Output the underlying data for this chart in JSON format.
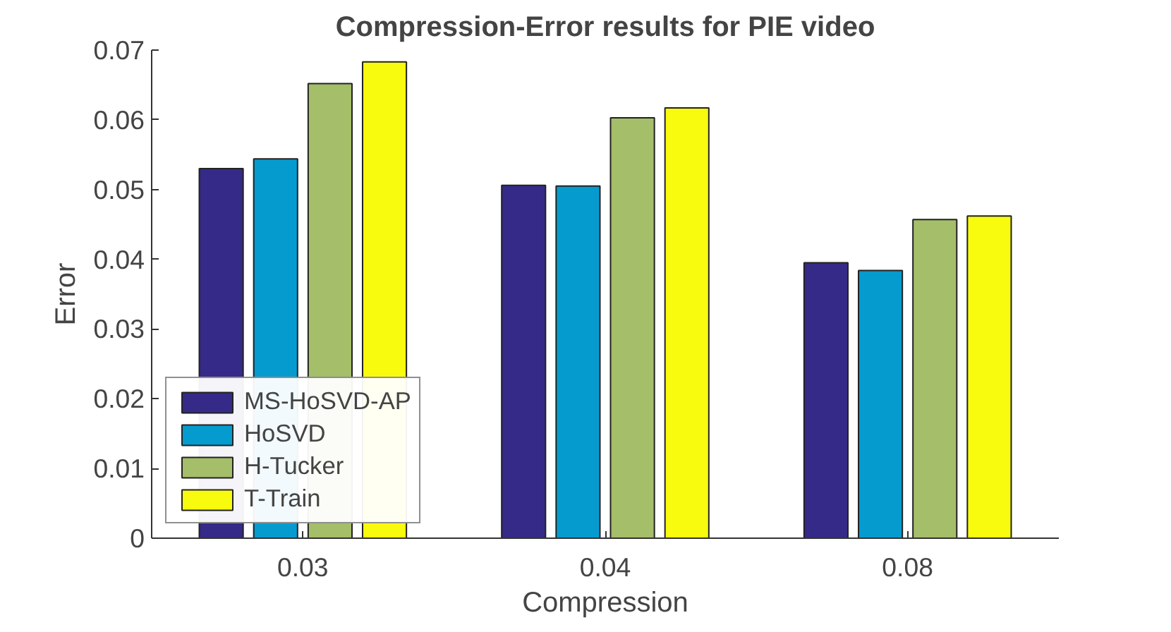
{
  "chart_data": {
    "type": "bar",
    "title": "Compression-Error results for PIE video",
    "xlabel": "Compression",
    "ylabel": "Error",
    "categories": [
      "0.03",
      "0.04",
      "0.08"
    ],
    "series": [
      {
        "name": "MS-HoSVD-AP",
        "color": "#352a87",
        "values": [
          0.053,
          0.0506,
          0.0395
        ]
      },
      {
        "name": "HoSVD",
        "color": "#069bcf",
        "values": [
          0.0544,
          0.0505,
          0.0384
        ]
      },
      {
        "name": "H-Tucker",
        "color": "#a5be6a",
        "values": [
          0.0652,
          0.0603,
          0.0457
        ]
      },
      {
        "name": "T-Train",
        "color": "#f9fb0e",
        "values": [
          0.0683,
          0.0617,
          0.0462
        ]
      }
    ],
    "ylim": [
      0,
      0.07
    ],
    "yticks": [
      0,
      0.01,
      0.02,
      0.03,
      0.04,
      0.05,
      0.06,
      0.07
    ],
    "grid": false,
    "legend": "bottom left"
  }
}
